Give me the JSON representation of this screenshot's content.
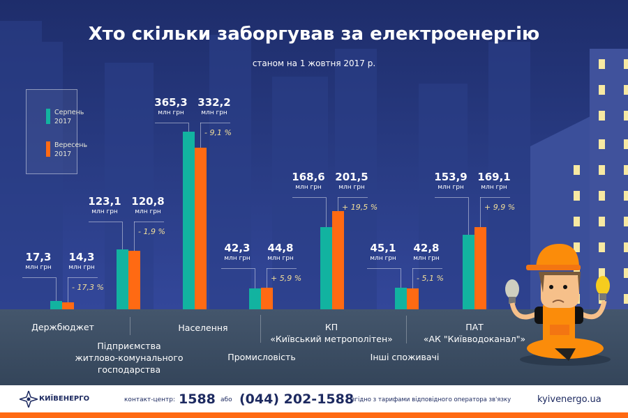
{
  "title": "Хто скільки заборгував за електроенергію",
  "subtitle": "станом на 1 жовтня 2017 р.",
  "colors": {
    "august": "#12b3a0",
    "september": "#ff6a13",
    "accent": "#ff6a13"
  },
  "chart_data": {
    "type": "bar",
    "unit": "млн грн",
    "legend": [
      {
        "name": "Серпень",
        "year": "2017"
      },
      {
        "name": "Вересень",
        "year": "2017"
      }
    ],
    "categories": [
      {
        "lines": [
          "Держбюджет"
        ]
      },
      {
        "lines": [
          "Підприємства",
          "житлово-комунального",
          "господарства"
        ]
      },
      {
        "lines": [
          "Населення"
        ]
      },
      {
        "lines": [
          "Промисловість"
        ]
      },
      {
        "lines": [
          "КП",
          "«Київський метрополітен»"
        ]
      },
      {
        "lines": [
          "Інші споживачі"
        ]
      },
      {
        "lines": [
          "ПАТ",
          "«АК \"Київводоканал\"»"
        ]
      }
    ],
    "series": [
      {
        "name": "Серпень 2017",
        "values": [
          17.3,
          123.1,
          365.3,
          42.3,
          168.6,
          45.1,
          153.9
        ],
        "labels": [
          "17,3",
          "123,1",
          "365,3",
          "42,3",
          "168,6",
          "45,1",
          "153,9"
        ]
      },
      {
        "name": "Вересень 2017",
        "values": [
          14.3,
          120.8,
          332.2,
          44.8,
          201.5,
          42.8,
          169.1
        ],
        "labels": [
          "14,3",
          "120,8",
          "332,2",
          "44,8",
          "201,5",
          "42,8",
          "169,1"
        ]
      }
    ],
    "changes": [
      "- 17,3 %",
      "- 1,9 %",
      "- 9,1 %",
      "+ 5,9 %",
      "+ 19,5 %",
      "- 5,1 %",
      "+ 9,9 %"
    ]
  },
  "footer": {
    "logo": "КИЇВЕНЕРГО",
    "contact_label": "контакт-центр:",
    "short_number": "1588",
    "or": "або",
    "phone": "(044) 202-1588",
    "tariff_note": "згідно з тарифами відповідного оператора зв'язку",
    "website": "kyivenergo.ua"
  }
}
